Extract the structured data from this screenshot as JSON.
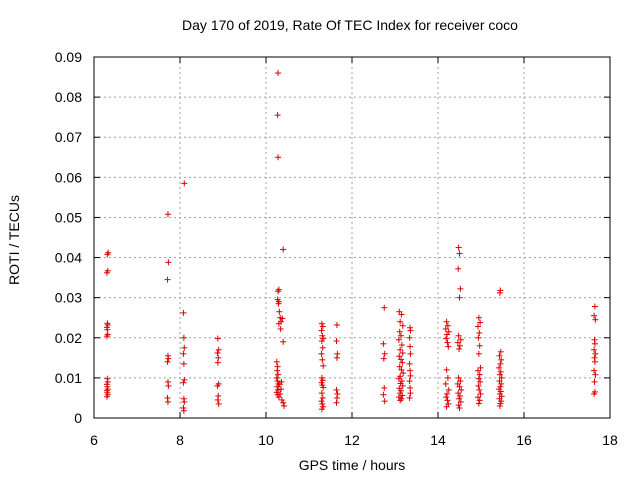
{
  "chart_data": {
    "type": "scatter",
    "title": "Day 170 of 2019, Rate Of TEC Index for receiver coco",
    "xlabel": "GPS time / hours",
    "ylabel": "ROTI / TECUs",
    "xlim": [
      6,
      18
    ],
    "ylim": [
      0,
      0.09
    ],
    "xticks": [
      "6",
      "8",
      "10",
      "12",
      "14",
      "16",
      "18"
    ],
    "yticks": [
      "0",
      "0.01",
      "0.02",
      "0.03",
      "0.04",
      "0.05",
      "0.06",
      "0.07",
      "0.08",
      "0.09"
    ],
    "grid": true,
    "marker": "+",
    "color": "#dd0000",
    "series": [
      {
        "name": "ROTI",
        "points": [
          [
            6.33,
            0.0412
          ],
          [
            6.31,
            0.0408
          ],
          [
            6.32,
            0.0367
          ],
          [
            6.3,
            0.0362
          ],
          [
            6.31,
            0.0236
          ],
          [
            6.32,
            0.0232
          ],
          [
            6.3,
            0.0226
          ],
          [
            6.31,
            0.022
          ],
          [
            6.32,
            0.0208
          ],
          [
            6.3,
            0.0204
          ],
          [
            6.31,
            0.0098
          ],
          [
            6.32,
            0.009
          ],
          [
            6.3,
            0.0084
          ],
          [
            6.31,
            0.0078
          ],
          [
            6.32,
            0.0072
          ],
          [
            6.3,
            0.0068
          ],
          [
            6.31,
            0.0063
          ],
          [
            6.32,
            0.0058
          ],
          [
            6.3,
            0.0053
          ],
          [
            7.72,
            0.0508
          ],
          [
            7.73,
            0.0388
          ],
          [
            7.71,
            0.0345
          ],
          [
            7.72,
            0.0155
          ],
          [
            7.73,
            0.0148
          ],
          [
            7.71,
            0.014
          ],
          [
            7.72,
            0.009
          ],
          [
            7.73,
            0.008
          ],
          [
            7.71,
            0.005
          ],
          [
            7.72,
            0.004
          ],
          [
            8.1,
            0.0585
          ],
          [
            8.08,
            0.0262
          ],
          [
            8.09,
            0.02
          ],
          [
            8.1,
            0.0175
          ],
          [
            8.08,
            0.016
          ],
          [
            8.09,
            0.0135
          ],
          [
            8.1,
            0.0095
          ],
          [
            8.08,
            0.0088
          ],
          [
            8.09,
            0.0048
          ],
          [
            8.1,
            0.004
          ],
          [
            8.08,
            0.0025
          ],
          [
            8.09,
            0.0018
          ],
          [
            8.88,
            0.0198
          ],
          [
            8.9,
            0.017
          ],
          [
            8.87,
            0.0162
          ],
          [
            8.89,
            0.015
          ],
          [
            8.88,
            0.0138
          ],
          [
            8.9,
            0.0085
          ],
          [
            8.87,
            0.008
          ],
          [
            8.89,
            0.0055
          ],
          [
            8.88,
            0.0045
          ],
          [
            8.9,
            0.0035
          ],
          [
            10.28,
            0.086
          ],
          [
            10.27,
            0.0755
          ],
          [
            10.28,
            0.065
          ],
          [
            10.4,
            0.042
          ],
          [
            10.3,
            0.032
          ],
          [
            10.28,
            0.0316
          ],
          [
            10.27,
            0.0295
          ],
          [
            10.3,
            0.029
          ],
          [
            10.29,
            0.0285
          ],
          [
            10.31,
            0.0265
          ],
          [
            10.33,
            0.025
          ],
          [
            10.35,
            0.024
          ],
          [
            10.3,
            0.0235
          ],
          [
            10.34,
            0.0222
          ],
          [
            10.38,
            0.0248
          ],
          [
            10.4,
            0.019
          ],
          [
            10.25,
            0.014
          ],
          [
            10.27,
            0.0128
          ],
          [
            10.26,
            0.0118
          ],
          [
            10.28,
            0.0108
          ],
          [
            10.25,
            0.01
          ],
          [
            10.27,
            0.0092
          ],
          [
            10.29,
            0.0085
          ],
          [
            10.26,
            0.0078
          ],
          [
            10.28,
            0.007
          ],
          [
            10.25,
            0.0064
          ],
          [
            10.27,
            0.0058
          ],
          [
            10.3,
            0.0052
          ],
          [
            10.33,
            0.006
          ],
          [
            10.35,
            0.0072
          ],
          [
            10.37,
            0.0045
          ],
          [
            10.4,
            0.0038
          ],
          [
            10.42,
            0.003
          ],
          [
            10.32,
            0.0084
          ],
          [
            10.36,
            0.009
          ],
          [
            11.3,
            0.0235
          ],
          [
            11.32,
            0.0228
          ],
          [
            11.29,
            0.0218
          ],
          [
            11.31,
            0.0205
          ],
          [
            11.33,
            0.0198
          ],
          [
            11.3,
            0.0192
          ],
          [
            11.32,
            0.0175
          ],
          [
            11.29,
            0.016
          ],
          [
            11.31,
            0.0145
          ],
          [
            11.33,
            0.013
          ],
          [
            11.3,
            0.01
          ],
          [
            11.32,
            0.0094
          ],
          [
            11.29,
            0.0088
          ],
          [
            11.31,
            0.0082
          ],
          [
            11.33,
            0.0076
          ],
          [
            11.3,
            0.0062
          ],
          [
            11.32,
            0.005
          ],
          [
            11.29,
            0.0042
          ],
          [
            11.31,
            0.0035
          ],
          [
            11.33,
            0.0028
          ],
          [
            11.3,
            0.0022
          ],
          [
            11.65,
            0.0232
          ],
          [
            11.64,
            0.0192
          ],
          [
            11.66,
            0.016
          ],
          [
            11.65,
            0.015
          ],
          [
            11.64,
            0.007
          ],
          [
            11.66,
            0.006
          ],
          [
            11.65,
            0.005
          ],
          [
            11.64,
            0.0038
          ],
          [
            12.75,
            0.0275
          ],
          [
            12.73,
            0.0185
          ],
          [
            12.76,
            0.016
          ],
          [
            12.74,
            0.0148
          ],
          [
            12.75,
            0.0075
          ],
          [
            12.73,
            0.0058
          ],
          [
            12.76,
            0.0042
          ],
          [
            13.1,
            0.0265
          ],
          [
            13.15,
            0.0258
          ],
          [
            13.12,
            0.024
          ],
          [
            13.18,
            0.023
          ],
          [
            13.11,
            0.0215
          ],
          [
            13.14,
            0.0205
          ],
          [
            13.09,
            0.0195
          ],
          [
            13.16,
            0.0182
          ],
          [
            13.12,
            0.017
          ],
          [
            13.18,
            0.0162
          ],
          [
            13.1,
            0.0154
          ],
          [
            13.14,
            0.0146
          ],
          [
            13.17,
            0.0138
          ],
          [
            13.11,
            0.0128
          ],
          [
            13.15,
            0.012
          ],
          [
            13.19,
            0.0112
          ],
          [
            13.12,
            0.0104
          ],
          [
            13.09,
            0.0098
          ],
          [
            13.16,
            0.0092
          ],
          [
            13.13,
            0.0086
          ],
          [
            13.18,
            0.008
          ],
          [
            13.1,
            0.0074
          ],
          [
            13.14,
            0.0068
          ],
          [
            13.12,
            0.0062
          ],
          [
            13.17,
            0.0056
          ],
          [
            13.09,
            0.0052
          ],
          [
            13.15,
            0.0048
          ],
          [
            13.12,
            0.0044
          ],
          [
            13.35,
            0.0225
          ],
          [
            13.36,
            0.0218
          ],
          [
            13.34,
            0.02
          ],
          [
            13.35,
            0.0178
          ],
          [
            13.36,
            0.016
          ],
          [
            13.34,
            0.0135
          ],
          [
            13.35,
            0.0118
          ],
          [
            13.36,
            0.0105
          ],
          [
            13.34,
            0.0092
          ],
          [
            13.35,
            0.0075
          ],
          [
            13.36,
            0.0062
          ],
          [
            13.34,
            0.005
          ],
          [
            14.2,
            0.024
          ],
          [
            14.23,
            0.023
          ],
          [
            14.18,
            0.0222
          ],
          [
            14.25,
            0.0215
          ],
          [
            14.21,
            0.0208
          ],
          [
            14.19,
            0.0198
          ],
          [
            14.22,
            0.0188
          ],
          [
            14.24,
            0.0178
          ],
          [
            14.2,
            0.012
          ],
          [
            14.23,
            0.01
          ],
          [
            14.18,
            0.0085
          ],
          [
            14.25,
            0.007
          ],
          [
            14.21,
            0.006
          ],
          [
            14.19,
            0.0052
          ],
          [
            14.22,
            0.0044
          ],
          [
            14.24,
            0.0035
          ],
          [
            14.2,
            0.0028
          ],
          [
            14.48,
            0.0425
          ],
          [
            14.5,
            0.041
          ],
          [
            14.47,
            0.0372
          ],
          [
            14.52,
            0.0322
          ],
          [
            14.5,
            0.03
          ],
          [
            14.48,
            0.0205
          ],
          [
            14.53,
            0.0195
          ],
          [
            14.46,
            0.0188
          ],
          [
            14.51,
            0.018
          ],
          [
            14.49,
            0.0172
          ],
          [
            14.48,
            0.01
          ],
          [
            14.52,
            0.0092
          ],
          [
            14.46,
            0.0085
          ],
          [
            14.5,
            0.0078
          ],
          [
            14.54,
            0.007
          ],
          [
            14.47,
            0.0062
          ],
          [
            14.51,
            0.0055
          ],
          [
            14.49,
            0.0048
          ],
          [
            14.53,
            0.004
          ],
          [
            14.48,
            0.0032
          ],
          [
            14.5,
            0.0025
          ],
          [
            14.95,
            0.025
          ],
          [
            14.98,
            0.0238
          ],
          [
            14.93,
            0.0228
          ],
          [
            14.96,
            0.0212
          ],
          [
            14.94,
            0.02
          ],
          [
            14.97,
            0.018
          ],
          [
            14.95,
            0.016
          ],
          [
            14.99,
            0.0125
          ],
          [
            14.93,
            0.0118
          ],
          [
            14.97,
            0.0108
          ],
          [
            14.95,
            0.0098
          ],
          [
            14.98,
            0.009
          ],
          [
            14.94,
            0.008
          ],
          [
            14.96,
            0.007
          ],
          [
            14.99,
            0.006
          ],
          [
            14.93,
            0.0052
          ],
          [
            14.97,
            0.0044
          ],
          [
            14.95,
            0.0036
          ],
          [
            15.45,
            0.0318
          ],
          [
            15.44,
            0.0312
          ],
          [
            15.46,
            0.0165
          ],
          [
            15.43,
            0.0155
          ],
          [
            15.47,
            0.0145
          ],
          [
            15.45,
            0.0135
          ],
          [
            15.42,
            0.0125
          ],
          [
            15.46,
            0.0115
          ],
          [
            15.44,
            0.0108
          ],
          [
            15.48,
            0.01
          ],
          [
            15.43,
            0.0092
          ],
          [
            15.47,
            0.0085
          ],
          [
            15.45,
            0.0078
          ],
          [
            15.42,
            0.0072
          ],
          [
            15.46,
            0.0066
          ],
          [
            15.44,
            0.006
          ],
          [
            15.48,
            0.0054
          ],
          [
            15.43,
            0.0048
          ],
          [
            15.47,
            0.0042
          ],
          [
            15.45,
            0.0036
          ],
          [
            15.44,
            0.003
          ],
          [
            17.65,
            0.0278
          ],
          [
            17.63,
            0.0255
          ],
          [
            17.66,
            0.0245
          ],
          [
            17.64,
            0.0195
          ],
          [
            17.65,
            0.0185
          ],
          [
            17.63,
            0.017
          ],
          [
            17.66,
            0.016
          ],
          [
            17.64,
            0.015
          ],
          [
            17.65,
            0.014
          ],
          [
            17.63,
            0.0118
          ],
          [
            17.66,
            0.0108
          ],
          [
            17.64,
            0.009
          ],
          [
            17.65,
            0.0065
          ],
          [
            17.63,
            0.006
          ]
        ]
      }
    ]
  }
}
